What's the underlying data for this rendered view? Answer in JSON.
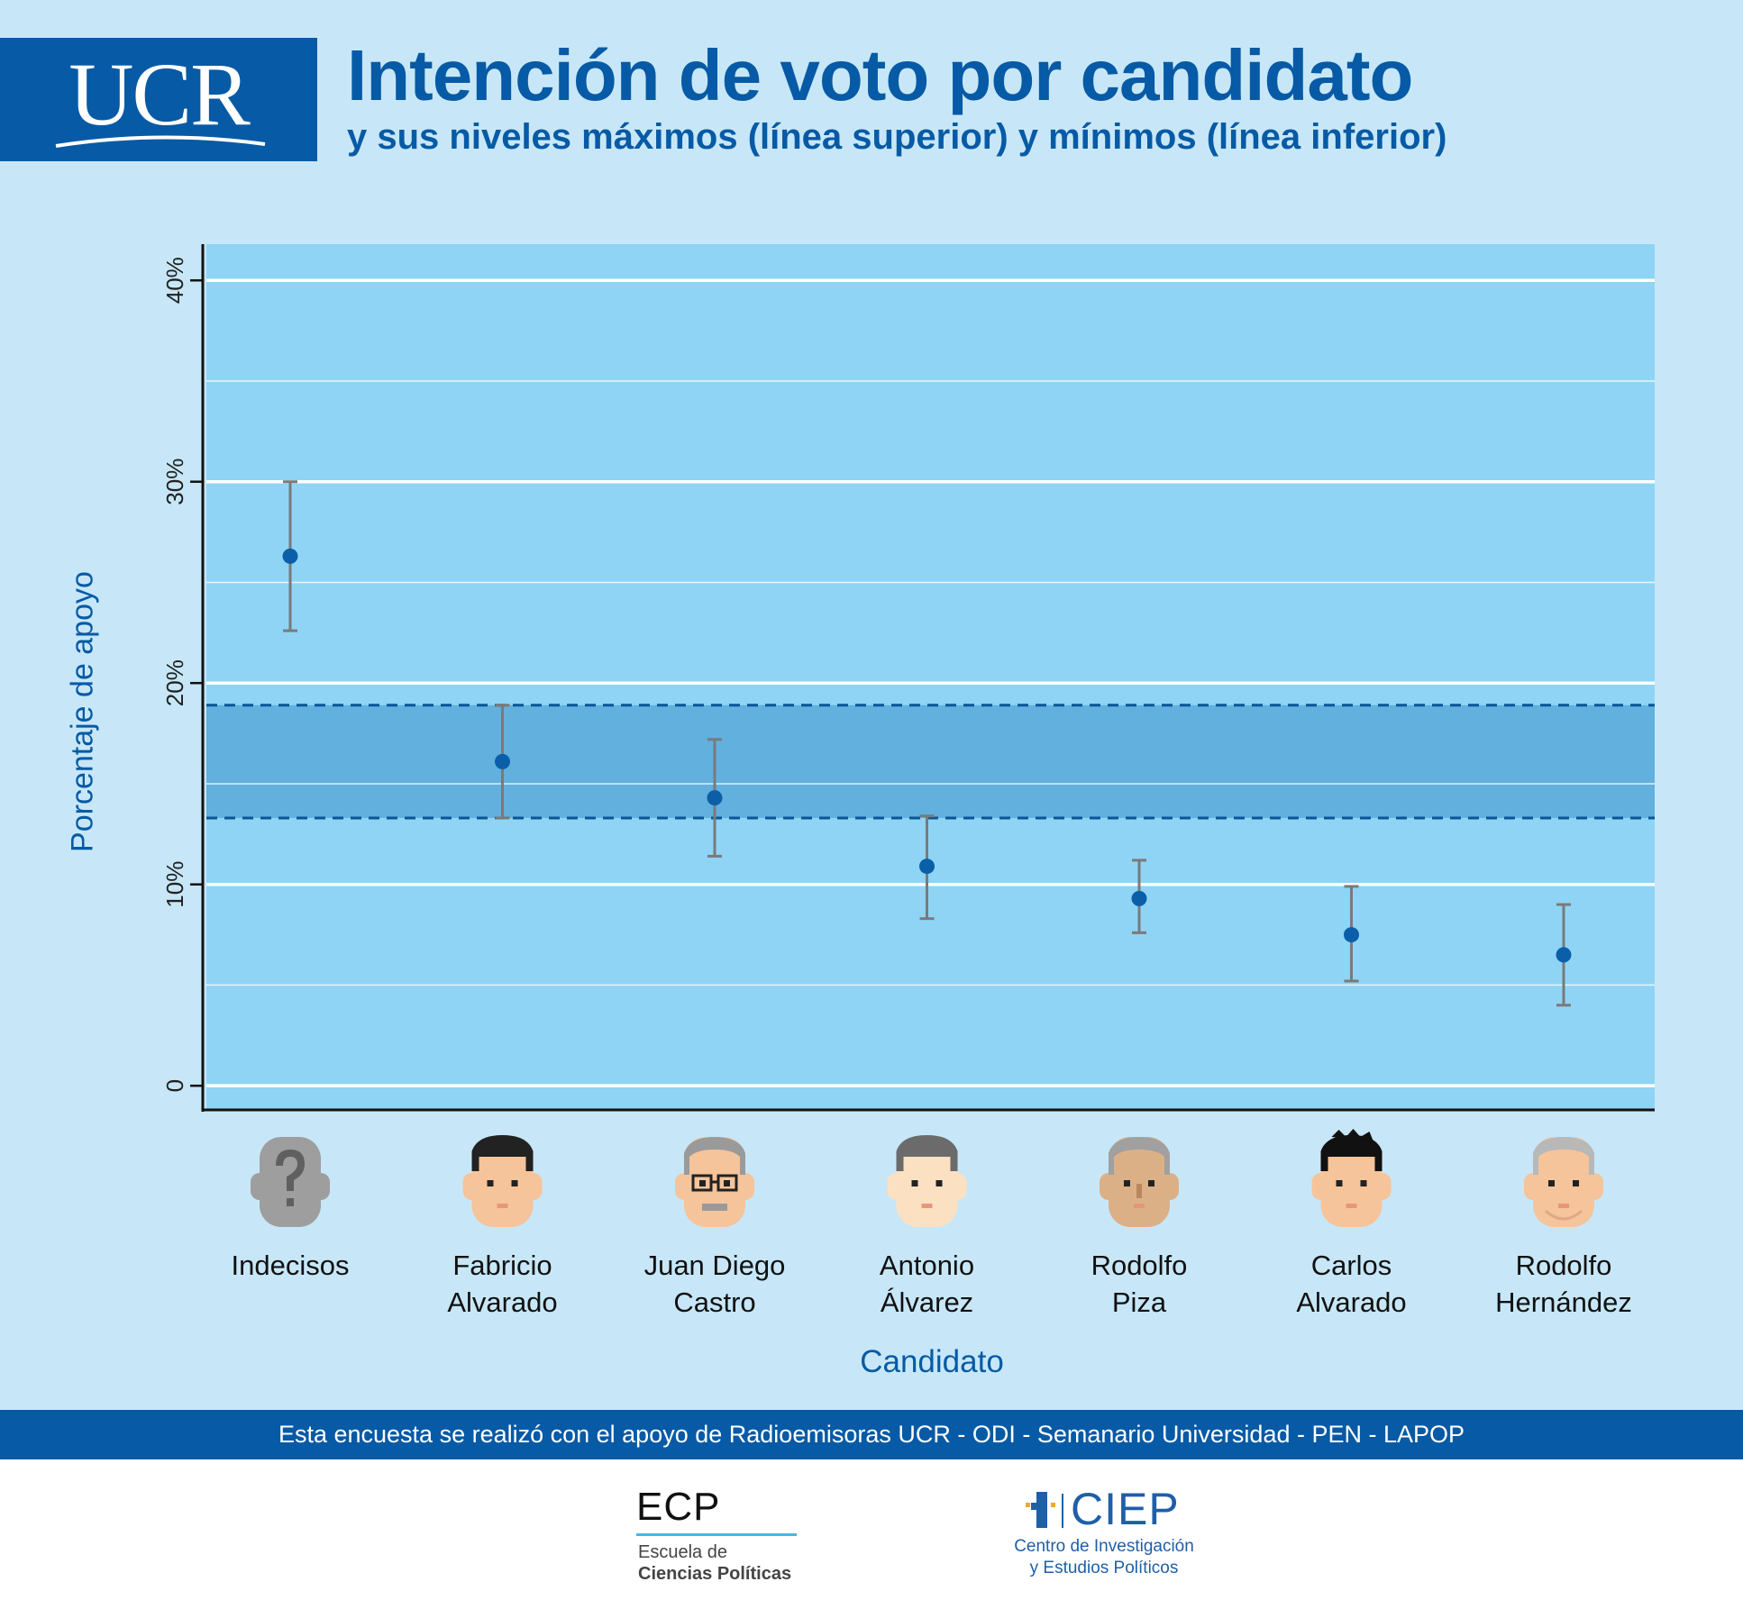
{
  "header": {
    "logo": "UCR",
    "title": "Intención de voto por candidato",
    "subtitle": "y sus niveles máximos (línea superior) y mínimos (línea inferior)"
  },
  "chart_data": {
    "type": "scatter",
    "title": "Intención de voto por candidato",
    "subtitle": "y sus niveles máximos (línea superior) y mínimos (línea inferior)",
    "xlabel": "Candidato",
    "ylabel": "Porcentaje de apoyo",
    "ylim": [
      -1.2,
      41.8
    ],
    "yticks": [
      0,
      10,
      20,
      30,
      40
    ],
    "ytick_labels": [
      "0",
      "10%",
      "20%",
      "30%",
      "40%"
    ],
    "minor_gridlines": [
      5,
      15,
      25,
      35
    ],
    "grid": true,
    "reference_band": {
      "low": 13.3,
      "high": 18.9
    },
    "categories": [
      {
        "lines": [
          "Indecisos"
        ],
        "face": "question-mark-face-icon"
      },
      {
        "lines": [
          "Fabricio",
          "Alvarado"
        ],
        "face": "fabricio-alvarado-face-icon"
      },
      {
        "lines": [
          "Juan Diego",
          "Castro"
        ],
        "face": "juan-diego-castro-face-icon"
      },
      {
        "lines": [
          "Antonio",
          "Álvarez"
        ],
        "face": "antonio-alvarez-face-icon"
      },
      {
        "lines": [
          "Rodolfo",
          "Piza"
        ],
        "face": "rodolfo-piza-face-icon"
      },
      {
        "lines": [
          "Carlos",
          "Alvarado"
        ],
        "face": "carlos-alvarado-face-icon"
      },
      {
        "lines": [
          "Rodolfo",
          "Hernández"
        ],
        "face": "rodolfo-hernandez-face-icon"
      }
    ],
    "values": [
      26.3,
      16.1,
      14.3,
      10.9,
      9.3,
      7.5,
      6.5
    ],
    "upper": [
      30.0,
      18.9,
      17.2,
      13.4,
      11.2,
      9.9,
      9.0
    ],
    "lower": [
      22.6,
      13.3,
      11.4,
      8.3,
      7.6,
      5.2,
      4.0
    ]
  },
  "colors": {
    "plot_bg": "#8fd4f5",
    "band": "#62b0dd",
    "dashed": "#0b5597",
    "point": "#0b5fa8",
    "errorbar": "#7a7a7a",
    "brand": "#075aa5"
  },
  "footer": {
    "support_text": "Esta encuesta se realizó con el apoyo de Radioemisoras UCR - ODI - Semanario Universidad - PEN - LAPOP",
    "ecp": {
      "title": "ECP",
      "line1": "Escuela de",
      "line2": "Ciencias Políticas"
    },
    "ciep": {
      "title": "CIEP",
      "line1": "Centro de Investigación",
      "line2": "y Estudios Políticos"
    }
  }
}
